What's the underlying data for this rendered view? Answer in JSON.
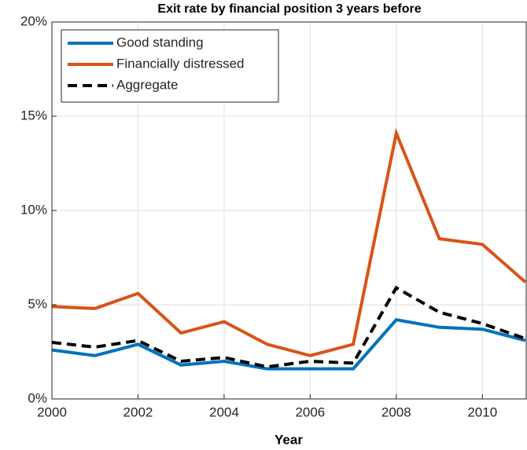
{
  "chart_data": {
    "type": "line",
    "title": "Exit rate by financial position 3 years before",
    "x_label": "Year",
    "x": [
      2000,
      2001,
      2002,
      2003,
      2004,
      2005,
      2006,
      2007,
      2008,
      2009,
      2010,
      2011
    ],
    "series": [
      {
        "name": "Good standing",
        "color": "#0072bd",
        "dash": "solid",
        "values": [
          2.6,
          2.3,
          2.9,
          1.8,
          2.0,
          1.6,
          1.6,
          1.6,
          4.2,
          3.8,
          3.7,
          3.1
        ]
      },
      {
        "name": "Financially distressed",
        "color": "#d95319",
        "dash": "solid",
        "values": [
          4.9,
          4.8,
          5.6,
          3.5,
          4.1,
          2.9,
          2.3,
          2.9,
          14.1,
          8.5,
          8.2,
          6.2
        ]
      },
      {
        "name": "Aggregate",
        "color": "#000000",
        "dash": "dashed",
        "values": [
          3.0,
          2.75,
          3.1,
          2.0,
          2.2,
          1.7,
          2.0,
          1.9,
          5.9,
          4.6,
          4.0,
          3.2
        ]
      }
    ],
    "xlim": [
      2000,
      2011
    ],
    "xticks": [
      2000,
      2002,
      2004,
      2006,
      2008,
      2010
    ],
    "ylim": [
      0,
      20
    ],
    "yticks": [
      {
        "value": 0,
        "label": "0%"
      },
      {
        "value": 5,
        "label": "5%"
      },
      {
        "value": 10,
        "label": "10%"
      },
      {
        "value": 15,
        "label": "15%"
      },
      {
        "value": 20,
        "label": "20%"
      }
    ],
    "grid": true,
    "legend": "upper-left"
  }
}
